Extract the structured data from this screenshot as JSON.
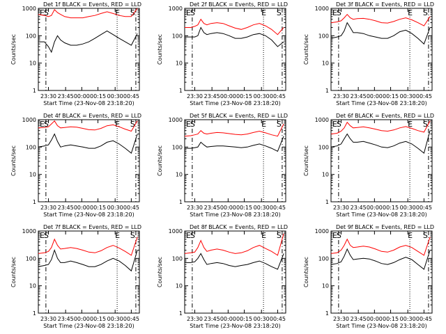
{
  "colors": {
    "events": "#000000",
    "lld": "#ff0000",
    "background": "#ffffff"
  },
  "chart_data": [
    {
      "type": "line",
      "title": "Det 1f BLACK = Events, RED = LLD",
      "xlabel": "Start Time (23-Nov-08 23:18:20)",
      "ylabel": "Counts/sec",
      "y_scale": "log",
      "ylim": [
        1,
        1000
      ],
      "y_ticks": [
        "1",
        "10",
        "100",
        "1000"
      ],
      "x_ticks": [
        "23:30",
        "23:45",
        "00:00",
        "00:15",
        "00:30",
        "00:45"
      ],
      "markers": [
        "E",
        "S",
        "E",
        "S"
      ],
      "series": [
        {
          "name": "BLACK = Events",
          "color": "#000000",
          "x": [
            0,
            6,
            10,
            13,
            16,
            19,
            22,
            26,
            32,
            38,
            44,
            50,
            56,
            62,
            68,
            74,
            80,
            86,
            92,
            98
          ],
          "y": [
            60,
            60,
            40,
            25,
            60,
            100,
            70,
            55,
            45,
            45,
            50,
            60,
            80,
            110,
            150,
            110,
            80,
            60,
            45,
            120
          ]
        },
        {
          "name": "RED = LLD",
          "color": "#ff0000",
          "x": [
            0,
            6,
            10,
            13,
            16,
            19,
            22,
            26,
            32,
            38,
            44,
            50,
            56,
            62,
            68,
            74,
            80,
            86,
            92,
            98
          ],
          "y": [
            600,
            550,
            500,
            550,
            900,
            700,
            600,
            500,
            450,
            450,
            450,
            500,
            550,
            650,
            750,
            650,
            550,
            500,
            500,
            1000
          ]
        }
      ]
    },
    {
      "type": "line",
      "title": "Det 2f BLACK = Events, RED = LLD",
      "xlabel": "Start Time (23-Nov-08 23:18:20)",
      "ylabel": "Counts/sec",
      "y_scale": "log",
      "ylim": [
        1,
        1000
      ],
      "y_ticks": [
        "1",
        "10",
        "100",
        "1000"
      ],
      "x_ticks": [
        "23:30",
        "23:45",
        "00:00",
        "00:15",
        "00:30",
        "00:45"
      ],
      "markers": [
        "E",
        "S",
        "E",
        "S"
      ],
      "series": [
        {
          "name": "BLACK = Events",
          "color": "#000000",
          "x": [
            0,
            6,
            10,
            13,
            16,
            19,
            22,
            26,
            32,
            38,
            44,
            50,
            56,
            62,
            68,
            74,
            80,
            86,
            92,
            98
          ],
          "y": [
            90,
            90,
            90,
            100,
            200,
            130,
            110,
            120,
            130,
            120,
            100,
            80,
            80,
            90,
            110,
            120,
            100,
            70,
            40,
            60
          ]
        },
        {
          "name": "RED = LLD",
          "color": "#ff0000",
          "x": [
            0,
            6,
            10,
            13,
            16,
            19,
            22,
            26,
            32,
            38,
            44,
            50,
            56,
            62,
            68,
            74,
            80,
            86,
            92,
            98
          ],
          "y": [
            200,
            200,
            220,
            250,
            400,
            280,
            250,
            280,
            300,
            280,
            230,
            190,
            170,
            200,
            250,
            280,
            230,
            170,
            110,
            200
          ]
        }
      ]
    },
    {
      "type": "line",
      "title": "Det 3f BLACK = Events, RED = LLD",
      "xlabel": "Start Time (23-Nov-08 23:18:20)",
      "ylabel": "Counts/sec",
      "y_scale": "log",
      "ylim": [
        1,
        1000
      ],
      "y_ticks": [
        "1",
        "10",
        "100",
        "1000"
      ],
      "x_ticks": [
        "23:30",
        "23:45",
        "00:00",
        "00:15",
        "00:30",
        "00:45"
      ],
      "markers": [
        "E",
        "S",
        "E",
        "S"
      ],
      "series": [
        {
          "name": "BLACK = Events",
          "color": "#000000",
          "x": [
            0,
            6,
            10,
            13,
            16,
            19,
            22,
            26,
            32,
            38,
            44,
            50,
            56,
            62,
            68,
            74,
            80,
            86,
            92,
            98
          ],
          "y": [
            80,
            90,
            100,
            150,
            300,
            200,
            130,
            130,
            120,
            100,
            90,
            80,
            80,
            100,
            140,
            160,
            120,
            80,
            50,
            200
          ]
        },
        {
          "name": "RED = LLD",
          "color": "#ff0000",
          "x": [
            0,
            6,
            10,
            13,
            16,
            19,
            22,
            26,
            32,
            38,
            44,
            50,
            56,
            62,
            68,
            74,
            80,
            86,
            92,
            98
          ],
          "y": [
            300,
            320,
            350,
            450,
            600,
            450,
            400,
            420,
            430,
            400,
            350,
            300,
            290,
            330,
            400,
            450,
            380,
            300,
            230,
            500
          ]
        }
      ]
    },
    {
      "type": "line",
      "title": "Det 4f BLACK = Events, RED = LLD",
      "xlabel": "Start Time (23-Nov-08 23:18:20)",
      "ylabel": "Counts/sec",
      "y_scale": "log",
      "ylim": [
        1,
        1000
      ],
      "y_ticks": [
        "1",
        "10",
        "100",
        "1000"
      ],
      "x_ticks": [
        "23:30",
        "23:45",
        "00:00",
        "00:15",
        "00:30",
        "00:45"
      ],
      "markers": [
        "E",
        "S",
        "E",
        "S"
      ],
      "series": [
        {
          "name": "BLACK = Events",
          "color": "#000000",
          "x": [
            0,
            6,
            10,
            13,
            16,
            19,
            22,
            26,
            32,
            38,
            44,
            50,
            56,
            62,
            68,
            74,
            80,
            86,
            92,
            98
          ],
          "y": [
            100,
            110,
            120,
            180,
            300,
            160,
            100,
            110,
            120,
            110,
            100,
            90,
            90,
            110,
            150,
            170,
            130,
            90,
            60,
            300
          ]
        },
        {
          "name": "RED = LLD",
          "color": "#ff0000",
          "x": [
            0,
            6,
            10,
            13,
            16,
            19,
            22,
            26,
            32,
            38,
            44,
            50,
            56,
            62,
            68,
            74,
            80,
            86,
            92,
            98
          ],
          "y": [
            500,
            520,
            550,
            700,
            900,
            600,
            500,
            520,
            550,
            530,
            480,
            430,
            420,
            480,
            600,
            650,
            550,
            450,
            380,
            900
          ]
        }
      ]
    },
    {
      "type": "line",
      "title": "Det 5f BLACK = Events, RED = LLD",
      "xlabel": "Start Time (23-Nov-08 23:18:20)",
      "ylabel": "Counts/sec",
      "y_scale": "log",
      "ylim": [
        1,
        1000
      ],
      "y_ticks": [
        "1",
        "10",
        "100",
        "1000"
      ],
      "x_ticks": [
        "23:30",
        "23:45",
        "00:00",
        "00:15",
        "00:30",
        "00:45"
      ],
      "markers": [
        "E",
        "S",
        "E",
        "S"
      ],
      "series": [
        {
          "name": "BLACK = Events",
          "color": "#000000",
          "x": [
            0,
            6,
            10,
            13,
            16,
            19,
            22,
            26,
            32,
            38,
            44,
            50,
            56,
            62,
            68,
            74,
            80,
            86,
            92,
            98
          ],
          "y": [
            90,
            90,
            95,
            100,
            150,
            120,
            100,
            105,
            110,
            110,
            105,
            100,
            95,
            100,
            115,
            130,
            110,
            90,
            70,
            250
          ]
        },
        {
          "name": "RED = LLD",
          "color": "#ff0000",
          "x": [
            0,
            6,
            10,
            13,
            16,
            19,
            22,
            26,
            32,
            38,
            44,
            50,
            56,
            62,
            68,
            74,
            80,
            86,
            92,
            98
          ],
          "y": [
            250,
            260,
            280,
            300,
            400,
            320,
            300,
            320,
            340,
            330,
            310,
            290,
            280,
            300,
            340,
            380,
            330,
            280,
            250,
            700
          ]
        }
      ]
    },
    {
      "type": "line",
      "title": "Det 6f BLACK = Events, RED = LLD",
      "xlabel": "Start Time (23-Nov-08 23:18:20)",
      "ylabel": "Counts/sec",
      "y_scale": "log",
      "ylim": [
        1,
        1000
      ],
      "y_ticks": [
        "1",
        "10",
        "100",
        "1000"
      ],
      "x_ticks": [
        "23:30",
        "23:45",
        "00:00",
        "00:15",
        "00:30",
        "00:45"
      ],
      "markers": [
        "E",
        "S",
        "E",
        "S"
      ],
      "series": [
        {
          "name": "BLACK = Events",
          "color": "#000000",
          "x": [
            0,
            6,
            10,
            13,
            16,
            19,
            22,
            26,
            32,
            38,
            44,
            50,
            56,
            62,
            68,
            74,
            80,
            86,
            92,
            98
          ],
          "y": [
            100,
            110,
            130,
            200,
            300,
            200,
            150,
            150,
            160,
            140,
            120,
            100,
            95,
            110,
            140,
            160,
            130,
            90,
            60,
            400
          ]
        },
        {
          "name": "RED = LLD",
          "color": "#ff0000",
          "x": [
            0,
            6,
            10,
            13,
            16,
            19,
            22,
            26,
            32,
            38,
            44,
            50,
            56,
            62,
            68,
            74,
            80,
            86,
            92,
            98
          ],
          "y": [
            300,
            320,
            380,
            500,
            800,
            600,
            500,
            520,
            550,
            500,
            450,
            400,
            380,
            420,
            500,
            560,
            480,
            400,
            350,
            900
          ]
        }
      ]
    },
    {
      "type": "line",
      "title": "Det 7f BLACK = Events, RED = LLD",
      "xlabel": "Start Time (23-Nov-08 23:18:20)",
      "ylabel": "Counts/sec",
      "y_scale": "log",
      "ylim": [
        1,
        1000
      ],
      "y_ticks": [
        "1",
        "10",
        "100",
        "1000"
      ],
      "x_ticks": [
        "23:30",
        "23:45",
        "00:00",
        "00:15",
        "00:30",
        "00:45"
      ],
      "markers": [
        "E",
        "S",
        "E",
        "S"
      ],
      "series": [
        {
          "name": "BLACK = Events",
          "color": "#000000",
          "x": [
            0,
            6,
            10,
            13,
            16,
            19,
            22,
            26,
            32,
            38,
            44,
            50,
            56,
            62,
            68,
            74,
            80,
            86,
            92,
            98
          ],
          "y": [
            50,
            55,
            60,
            90,
            200,
            100,
            70,
            70,
            80,
            70,
            60,
            50,
            50,
            60,
            80,
            100,
            80,
            55,
            35,
            200
          ]
        },
        {
          "name": "RED = LLD",
          "color": "#ff0000",
          "x": [
            0,
            6,
            10,
            13,
            16,
            19,
            22,
            26,
            32,
            38,
            44,
            50,
            56,
            62,
            68,
            74,
            80,
            86,
            92,
            98
          ],
          "y": [
            150,
            160,
            180,
            250,
            500,
            300,
            220,
            230,
            250,
            230,
            200,
            170,
            160,
            190,
            250,
            300,
            240,
            180,
            130,
            600
          ]
        }
      ]
    },
    {
      "type": "line",
      "title": "Det 8f BLACK = Events, RED = LLD",
      "xlabel": "Start Time (23-Nov-08 23:18:20)",
      "ylabel": "Counts/sec",
      "y_scale": "log",
      "ylim": [
        1,
        1000
      ],
      "y_ticks": [
        "1",
        "10",
        "100",
        "1000"
      ],
      "x_ticks": [
        "23:30",
        "23:45",
        "00:00",
        "00:15",
        "00:30",
        "00:45"
      ],
      "markers": [
        "E",
        "S",
        "E",
        "S"
      ],
      "series": [
        {
          "name": "BLACK = Events",
          "color": "#000000",
          "x": [
            0,
            6,
            10,
            13,
            16,
            19,
            22,
            26,
            32,
            38,
            44,
            50,
            56,
            62,
            68,
            74,
            80,
            86,
            92,
            98
          ],
          "y": [
            70,
            70,
            75,
            100,
            150,
            90,
            60,
            65,
            70,
            65,
            55,
            50,
            55,
            60,
            70,
            80,
            65,
            50,
            40,
            150
          ]
        },
        {
          "name": "RED = LLD",
          "color": "#ff0000",
          "x": [
            0,
            6,
            10,
            13,
            16,
            19,
            22,
            26,
            32,
            38,
            44,
            50,
            56,
            62,
            68,
            74,
            80,
            86,
            92,
            98
          ],
          "y": [
            150,
            160,
            170,
            250,
            450,
            250,
            180,
            200,
            220,
            200,
            170,
            150,
            160,
            190,
            250,
            300,
            230,
            180,
            130,
            800
          ]
        }
      ]
    },
    {
      "type": "line",
      "title": "Det 9f BLACK = Events, RED = LLD",
      "xlabel": "Start Time (23-Nov-08 23:18:20)",
      "ylabel": "Counts/sec",
      "y_scale": "log",
      "ylim": [
        1,
        1000
      ],
      "y_ticks": [
        "1",
        "10",
        "100",
        "1000"
      ],
      "x_ticks": [
        "23:30",
        "23:45",
        "00:00",
        "00:15",
        "00:30",
        "00:45"
      ],
      "markers": [
        "E",
        "S",
        "E",
        "S"
      ],
      "series": [
        {
          "name": "BLACK = Events",
          "color": "#000000",
          "x": [
            0,
            6,
            10,
            13,
            16,
            19,
            22,
            26,
            32,
            38,
            44,
            50,
            56,
            62,
            68,
            74,
            80,
            86,
            92,
            98
          ],
          "y": [
            60,
            65,
            75,
            120,
            220,
            130,
            90,
            95,
            100,
            95,
            80,
            65,
            60,
            70,
            90,
            110,
            90,
            60,
            40,
            200
          ]
        },
        {
          "name": "RED = LLD",
          "color": "#ff0000",
          "x": [
            0,
            6,
            10,
            13,
            16,
            19,
            22,
            26,
            32,
            38,
            44,
            50,
            56,
            62,
            68,
            74,
            80,
            86,
            92,
            98
          ],
          "y": [
            150,
            160,
            200,
            300,
            500,
            300,
            250,
            260,
            280,
            260,
            220,
            180,
            170,
            200,
            260,
            300,
            250,
            180,
            130,
            600
          ]
        }
      ]
    }
  ]
}
